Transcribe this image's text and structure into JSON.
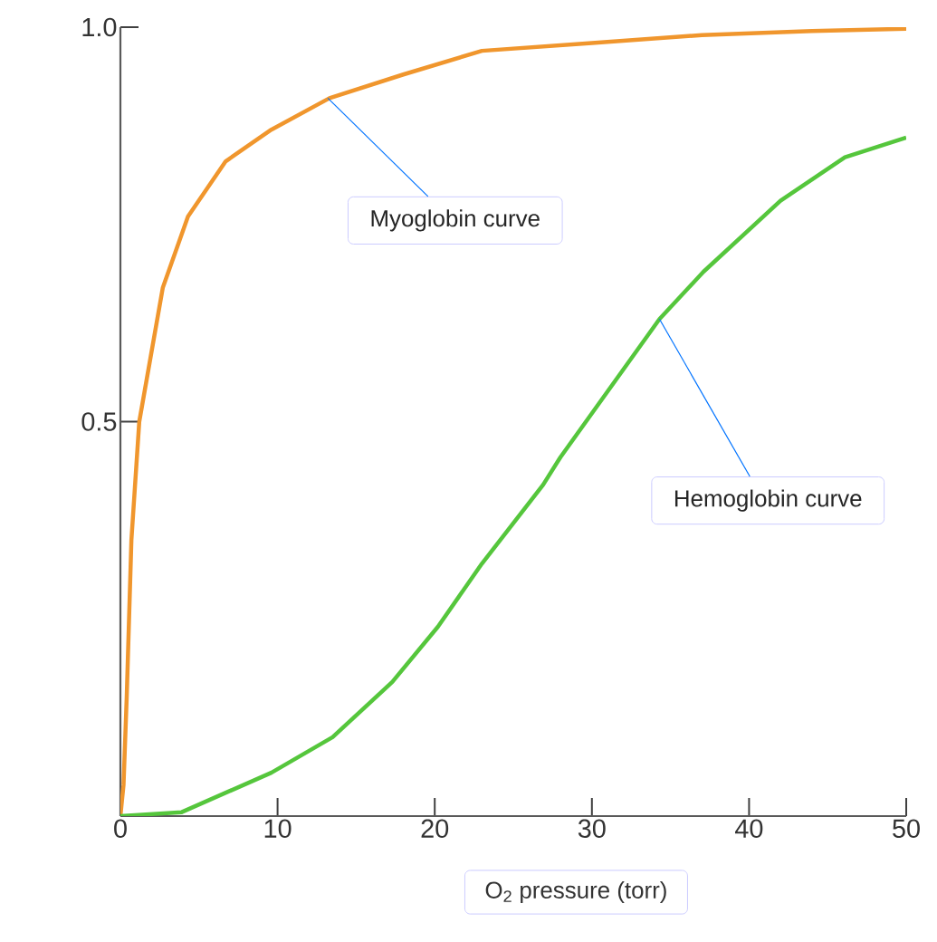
{
  "chart_data": {
    "type": "line",
    "xlabel": "O$_{2}$ pressure (torr)",
    "xlim": [
      0,
      50
    ],
    "ylim": [
      0,
      1.0
    ],
    "xticks": [
      0,
      10,
      20,
      30,
      40,
      50
    ],
    "yticks": [
      {
        "value": 0.5,
        "label": "0.5"
      },
      {
        "value": 1.0,
        "label": "1.0"
      }
    ],
    "series": [
      {
        "color": "#f0962d",
        "x": [
          0,
          0.2,
          0.4,
          0.7,
          1.2,
          2.7,
          4.3,
          6.7,
          9.6,
          13.3,
          18,
          23,
          30,
          37,
          44,
          50
        ],
        "values": [
          0,
          0.04,
          0.15,
          0.35,
          0.5,
          0.67,
          0.76,
          0.83,
          0.87,
          0.91,
          0.94,
          0.97,
          0.98,
          0.99,
          0.995,
          0.998
        ]
      },
      {
        "color": "#55c63c",
        "x": [
          0,
          3.9,
          9.6,
          13.5,
          17.3,
          20.2,
          23,
          26.9,
          28,
          34.3,
          37.1,
          42,
          46.1,
          50
        ],
        "values": [
          0,
          0.005,
          0.055,
          0.1,
          0.17,
          0.24,
          0.32,
          0.42,
          0.455,
          0.63,
          0.69,
          0.78,
          0.835,
          0.86
        ]
      }
    ],
    "annotations": [
      {
        "text": "Myoglobin curve",
        "x": 13.2,
        "y": 0.91
      },
      {
        "text": "Hemoglobin curve",
        "x": 34.3,
        "y": 0.63
      }
    ]
  }
}
